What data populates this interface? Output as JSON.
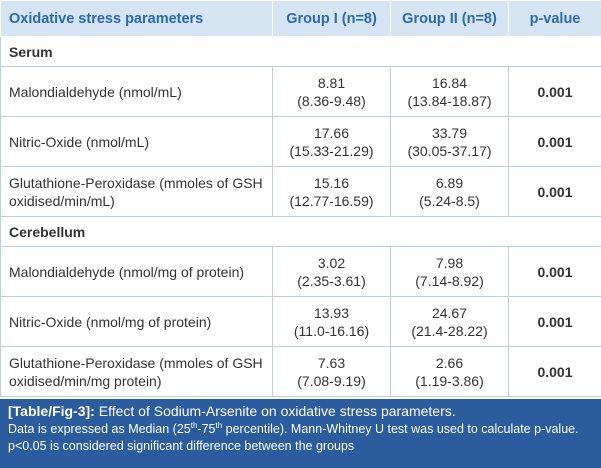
{
  "table": {
    "header": [
      "Oxidative stress parameters",
      "Group I (n=8)",
      "Group II (n=8)",
      "p-value"
    ],
    "sections": [
      {
        "title": "Serum",
        "rows": [
          {
            "parameter": "Malondialdehyde (nmol/mL)",
            "group1": [
              "8.81",
              "(8.36-9.48)"
            ],
            "group2": [
              "16.84",
              "(13.84-18.87)"
            ],
            "p": "0.001"
          },
          {
            "parameter": "Nitric-Oxide (nmol/mL)",
            "group1": [
              "17.66",
              "(15.33-21.29)"
            ],
            "group2": [
              "33.79",
              "(30.05-37.17)"
            ],
            "p": "0.001"
          },
          {
            "parameter": "Glutathione-Peroxidase (mmoles of GSH oxidised/min/mL)",
            "group1": [
              "15.16",
              "(12.77-16.59)"
            ],
            "group2": [
              "6.89",
              "(5.24-8.5)"
            ],
            "p": "0.001"
          }
        ]
      },
      {
        "title": "Cerebellum",
        "rows": [
          {
            "parameter": "Malondialdehyde (nmol/mg of protein)",
            "group1": [
              "3.02",
              "(2.35-3.61)"
            ],
            "group2": [
              "7.98",
              "(7.14-8.92)"
            ],
            "p": "0.001"
          },
          {
            "parameter": "Nitric-Oxide (nmol/mg of protein)",
            "group1": [
              "13.93",
              "(11.0-16.16)"
            ],
            "group2": [
              "24.67",
              "(21.4-28.22)"
            ],
            "p": "0.001"
          },
          {
            "parameter": "Glutathione-Peroxidase (mmoles of GSH oxidised/min/mg protein)",
            "group1": [
              "7.63",
              "(7.08-9.19)"
            ],
            "group2": [
              "2.66",
              "(1.19-3.86)"
            ],
            "p": "0.001"
          }
        ]
      }
    ]
  },
  "caption": {
    "label": "[Table/Fig-3]:",
    "title": " Effect of Sodium-Arsenite on oxidative stress parameters.",
    "note": [
      "Data is expressed as Median (25",
      "th",
      "-75",
      "th",
      " percentile). Mann-Whitney U test was used to calculate p-value. p<0.05 is considered significant difference between the groups"
    ]
  }
}
